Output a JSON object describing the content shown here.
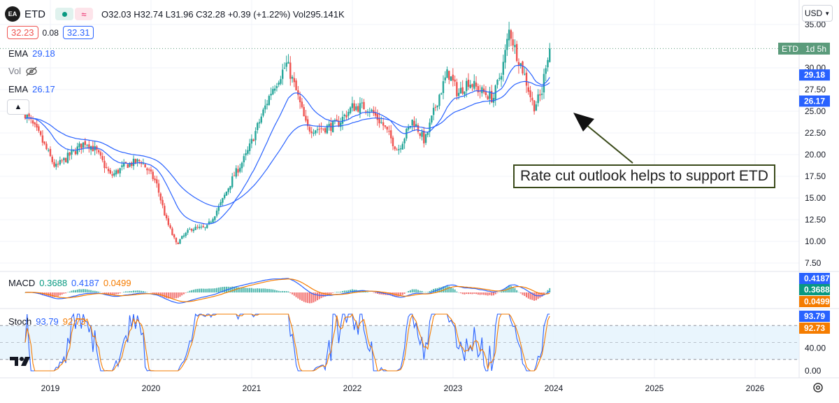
{
  "header": {
    "symbol_logo": "EA",
    "symbol": "ETD",
    "ohlc": "O32.03 H32.74 L31.96 C32.28 +0.39 (+1.22%) Vol295.141K",
    "bid": "32.23",
    "spread": "0.08",
    "ask": "32.31",
    "currency": "USD"
  },
  "indicators": {
    "ema_fast_label": "EMA",
    "ema_fast_value": "29.18",
    "vol_label": "Vol",
    "ema_slow_label": "EMA",
    "ema_slow_value": "26.17",
    "macd_label": "MACD",
    "macd_v1": "0.3688",
    "macd_v2": "0.4187",
    "macd_v3": "0.0499",
    "stoch_label": "Stoch",
    "stoch_k": "93.79",
    "stoch_d": "92.73"
  },
  "price_tag": {
    "symbol": "ETD",
    "countdown": "1d 5h"
  },
  "annotation": {
    "text": "Rate cut outlook helps to support ETD"
  },
  "colors": {
    "up": "#26a69a",
    "down": "#ef5350",
    "ema": "#2962ff",
    "signal": "#f57c00",
    "stoch_band": "#e3f2fd",
    "price_tag": "#5b9b7b"
  },
  "chart_data": {
    "type": "candlestick",
    "price_axis": {
      "ticks": [
        7.5,
        10,
        12.5,
        15,
        17.5,
        20,
        22.5,
        25,
        27.5,
        30,
        35
      ],
      "range": [
        6.4,
        36.2
      ]
    },
    "time_axis": {
      "ticks": [
        "2019",
        "2020",
        "2021",
        "2022",
        "2023",
        "2024",
        "2025",
        "2026"
      ]
    },
    "price_key_points": [
      {
        "t": 2018.75,
        "p": 24.8
      },
      {
        "t": 2018.9,
        "p": 22.0
      },
      {
        "t": 2019.05,
        "p": 18.5
      },
      {
        "t": 2019.2,
        "p": 20.0
      },
      {
        "t": 2019.35,
        "p": 21.5
      },
      {
        "t": 2019.45,
        "p": 20.5
      },
      {
        "t": 2019.6,
        "p": 17.5
      },
      {
        "t": 2019.75,
        "p": 18.8
      },
      {
        "t": 2019.9,
        "p": 19.3
      },
      {
        "t": 2020.05,
        "p": 16.8
      },
      {
        "t": 2020.15,
        "p": 12.5
      },
      {
        "t": 2020.25,
        "p": 9.7
      },
      {
        "t": 2020.4,
        "p": 11.5
      },
      {
        "t": 2020.55,
        "p": 11.5
      },
      {
        "t": 2020.7,
        "p": 14.5
      },
      {
        "t": 2020.82,
        "p": 17.5
      },
      {
        "t": 2020.95,
        "p": 20.0
      },
      {
        "t": 2021.05,
        "p": 23.0
      },
      {
        "t": 2021.2,
        "p": 27.5
      },
      {
        "t": 2021.35,
        "p": 30.5
      },
      {
        "t": 2021.45,
        "p": 27.0
      },
      {
        "t": 2021.55,
        "p": 23.0
      },
      {
        "t": 2021.7,
        "p": 23.0
      },
      {
        "t": 2021.85,
        "p": 23.5
      },
      {
        "t": 2022.0,
        "p": 25.5
      },
      {
        "t": 2022.15,
        "p": 25.5
      },
      {
        "t": 2022.3,
        "p": 23.5
      },
      {
        "t": 2022.45,
        "p": 20.5
      },
      {
        "t": 2022.6,
        "p": 24.0
      },
      {
        "t": 2022.72,
        "p": 21.5
      },
      {
        "t": 2022.85,
        "p": 26.5
      },
      {
        "t": 2022.95,
        "p": 29.5
      },
      {
        "t": 2023.05,
        "p": 27.0
      },
      {
        "t": 2023.15,
        "p": 28.5
      },
      {
        "t": 2023.25,
        "p": 27.5
      },
      {
        "t": 2023.4,
        "p": 26.5
      },
      {
        "t": 2023.5,
        "p": 30.5
      },
      {
        "t": 2023.56,
        "p": 34.5
      },
      {
        "t": 2023.62,
        "p": 32.0
      },
      {
        "t": 2023.7,
        "p": 29.5
      },
      {
        "t": 2023.8,
        "p": 25.5
      },
      {
        "t": 2023.88,
        "p": 27.0
      },
      {
        "t": 2023.92,
        "p": 30.5
      },
      {
        "t": 2023.96,
        "p": 32.3
      }
    ],
    "macd": {
      "levels": [
        0.4187,
        0.3688,
        0.0499
      ]
    },
    "stoch": {
      "ticks": [
        0.0,
        40.0
      ],
      "upper_band": 80,
      "lower_band": 20
    }
  }
}
